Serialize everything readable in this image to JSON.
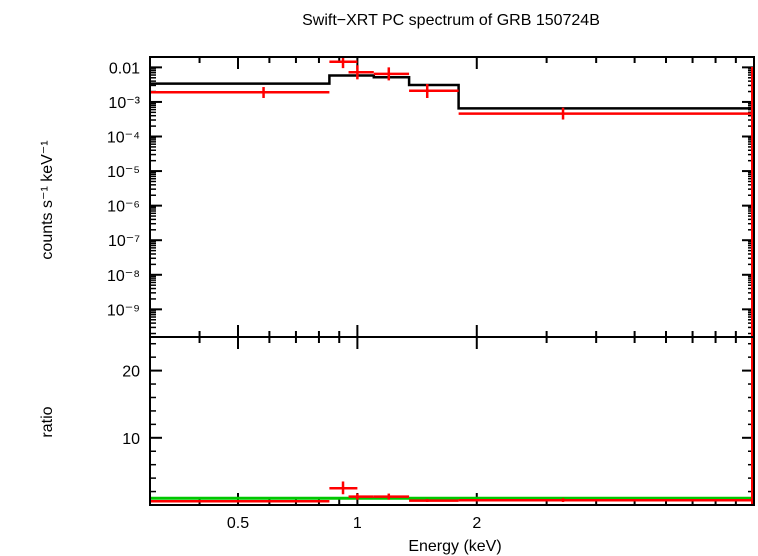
{
  "chart_data": {
    "type": "scatter",
    "title": "Swift−XRT PC spectrum of GRB 150724B",
    "xlabel": "Energy (keV)",
    "x_scale": "log",
    "xlim": [
      0.3,
      10
    ],
    "x_ticks": [
      {
        "value": 0.5,
        "label": "0.5"
      },
      {
        "value": 1,
        "label": "1"
      },
      {
        "value": 2,
        "label": "2"
      }
    ],
    "top_panel": {
      "ylabel": "counts s⁻¹ keV⁻¹",
      "y_scale": "log",
      "ylim_log10": [
        -9.8,
        -1.7
      ],
      "y_ticks": [
        {
          "exp": -2,
          "label": "0.01"
        },
        {
          "exp": -3,
          "label": "10⁻³"
        },
        {
          "exp": -4,
          "label": "10⁻⁴"
        },
        {
          "exp": -5,
          "label": "10⁻⁵"
        },
        {
          "exp": -6,
          "label": "10⁻⁶"
        },
        {
          "exp": -7,
          "label": "10⁻⁷"
        },
        {
          "exp": -8,
          "label": "10⁻⁸"
        },
        {
          "exp": -9,
          "label": "10⁻⁹"
        }
      ],
      "model_steps": [
        {
          "x0": 0.3,
          "x1": 0.85,
          "y": 0.0034
        },
        {
          "x0": 0.85,
          "x1": 1.1,
          "y": 0.0058
        },
        {
          "x0": 1.1,
          "x1": 1.35,
          "y": 0.0052
        },
        {
          "x0": 1.35,
          "x1": 1.8,
          "y": 0.0031
        },
        {
          "x0": 1.8,
          "x1": 10,
          "y": 0.00065
        }
      ],
      "data_points": [
        {
          "x": 0.58,
          "xlo": 0.3,
          "xhi": 0.85,
          "y": 0.0019,
          "ylo": 0.0013,
          "yhi": 0.0027
        },
        {
          "x": 0.92,
          "xlo": 0.85,
          "xhi": 1.0,
          "y": 0.0145,
          "ylo": 0.0095,
          "yhi": 0.021
        },
        {
          "x": 1.0,
          "xlo": 0.95,
          "xhi": 1.1,
          "y": 0.0072,
          "ylo": 0.0045,
          "yhi": 0.0115
        },
        {
          "x": 1.2,
          "xlo": 1.1,
          "xhi": 1.35,
          "y": 0.0065,
          "ylo": 0.0042,
          "yhi": 0.01
        },
        {
          "x": 1.5,
          "xlo": 1.35,
          "xhi": 1.8,
          "y": 0.0021,
          "ylo": 0.0013,
          "yhi": 0.0033
        },
        {
          "x": 3.3,
          "xlo": 1.8,
          "xhi": 10,
          "y": 0.00046,
          "ylo": 0.00031,
          "yhi": 0.00068
        }
      ]
    },
    "bottom_panel": {
      "ylabel": "ratio",
      "ylim": [
        0,
        25
      ],
      "y_ticks": [
        {
          "value": 10,
          "label": "10"
        },
        {
          "value": 20,
          "label": "20"
        }
      ],
      "reference_line": 1,
      "data_points": [
        {
          "x": 0.58,
          "xlo": 0.3,
          "xhi": 0.85,
          "y": 0.55,
          "ylo": 0.4,
          "yhi": 0.7
        },
        {
          "x": 0.92,
          "xlo": 0.85,
          "xhi": 1.0,
          "y": 2.5,
          "ylo": 1.6,
          "yhi": 3.5
        },
        {
          "x": 1.0,
          "xlo": 0.95,
          "xhi": 1.1,
          "y": 1.25,
          "ylo": 0.8,
          "yhi": 1.7
        },
        {
          "x": 1.2,
          "xlo": 1.1,
          "xhi": 1.35,
          "y": 1.25,
          "ylo": 0.8,
          "yhi": 1.7
        },
        {
          "x": 1.5,
          "xlo": 1.35,
          "xhi": 1.8,
          "y": 0.65,
          "ylo": 0.45,
          "yhi": 0.9
        },
        {
          "x": 3.3,
          "xlo": 1.8,
          "xhi": 10,
          "y": 0.7,
          "ylo": 0.45,
          "yhi": 1.0
        }
      ]
    },
    "colors": {
      "data": "#ff0000",
      "model": "#000000",
      "reference": "#00c800",
      "axes": "#000000"
    }
  }
}
